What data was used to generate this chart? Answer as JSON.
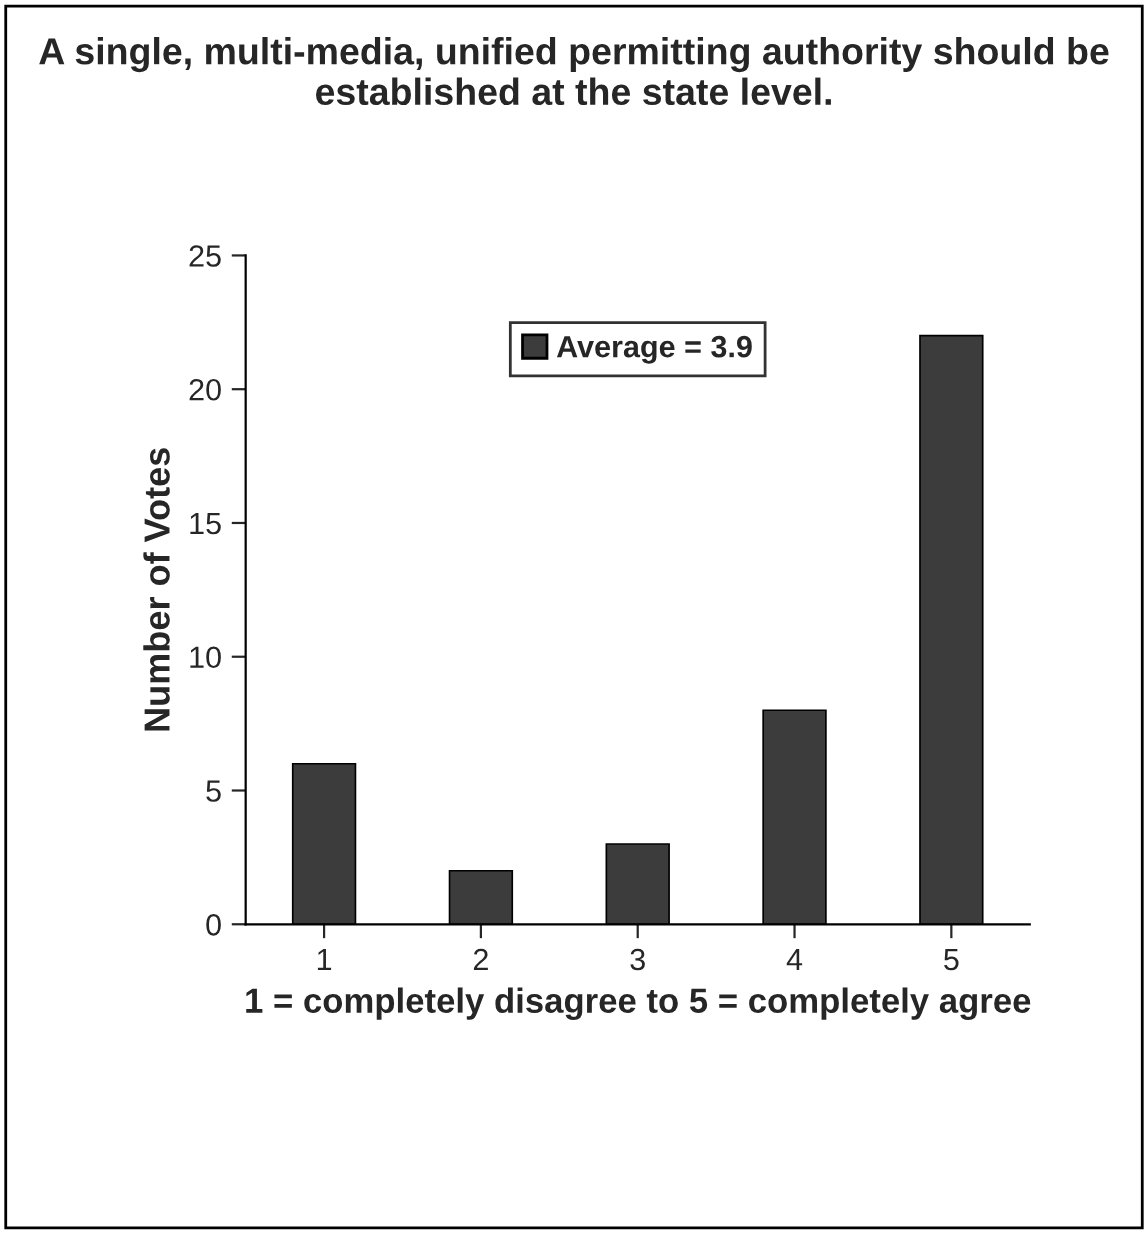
{
  "chart_data": {
    "type": "bar",
    "title": "A single, multi-media, unified permitting authority should be established at the state level.",
    "xlabel": "1 = completely disagree to 5 = completely agree",
    "ylabel": "Number of Votes",
    "categories": [
      "1",
      "2",
      "3",
      "4",
      "5"
    ],
    "series": [
      {
        "name": "Average = 3.9",
        "color": "#3c3c3c",
        "values": [
          6,
          2,
          3,
          8,
          22
        ]
      }
    ],
    "ylim": [
      0,
      25
    ],
    "yticks": [
      0,
      5,
      10,
      15,
      20,
      25
    ],
    "grid": false,
    "legend": "top"
  }
}
